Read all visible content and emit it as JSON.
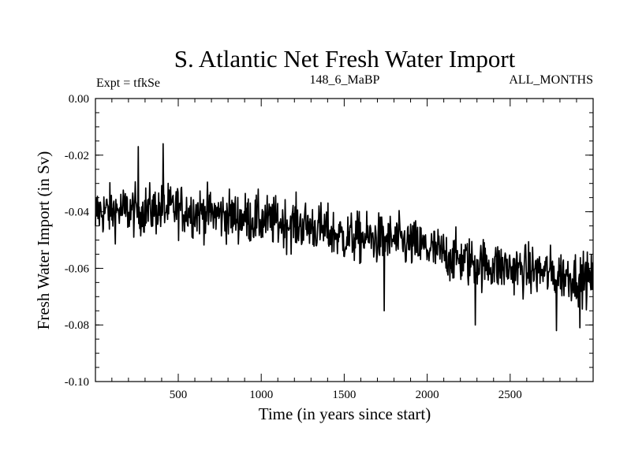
{
  "chart_data": {
    "type": "line",
    "title": "S. Atlantic Net Fresh Water Import",
    "subtitle_left": "Expt = tfkSe",
    "subtitle_center": "148_6_MaBP",
    "subtitle_right": "ALL_MONTHS",
    "xlabel": "Time (in years since start)",
    "ylabel": "Fresh Water Import (in Sv)",
    "xlim": [
      1,
      3000
    ],
    "ylim": [
      -0.1,
      0.0
    ],
    "x_ticks": [
      500,
      1000,
      1500,
      2000,
      2500
    ],
    "x_tick_labels": [
      "500",
      "1000",
      "1500",
      "2000",
      "2500"
    ],
    "y_ticks": [
      0.0,
      -0.02,
      -0.04,
      -0.06,
      -0.08,
      -0.1
    ],
    "y_tick_labels": [
      "0.00",
      "-0.02",
      "-0.04",
      "-0.06",
      "-0.08",
      "-0.10"
    ],
    "series": [
      {
        "name": "Net Fresh Water Import",
        "color": "#000000",
        "sample_step_years": 3,
        "mean_trend_x": [
          1,
          500,
          1000,
          1300,
          1500,
          1800,
          2000,
          2200,
          2500,
          2800,
          3000
        ],
        "mean_trend_y": [
          -0.04,
          -0.039,
          -0.043,
          -0.045,
          -0.049,
          -0.05,
          -0.053,
          -0.057,
          -0.06,
          -0.062,
          -0.064
        ],
        "noise_amplitude_sv": 0.008,
        "extremes_x": [
          1,
          260,
          410,
          1740,
          2290,
          2780,
          2920
        ],
        "extremes_y": [
          -0.045,
          -0.017,
          -0.016,
          -0.075,
          -0.08,
          -0.082,
          -0.081
        ]
      }
    ]
  }
}
